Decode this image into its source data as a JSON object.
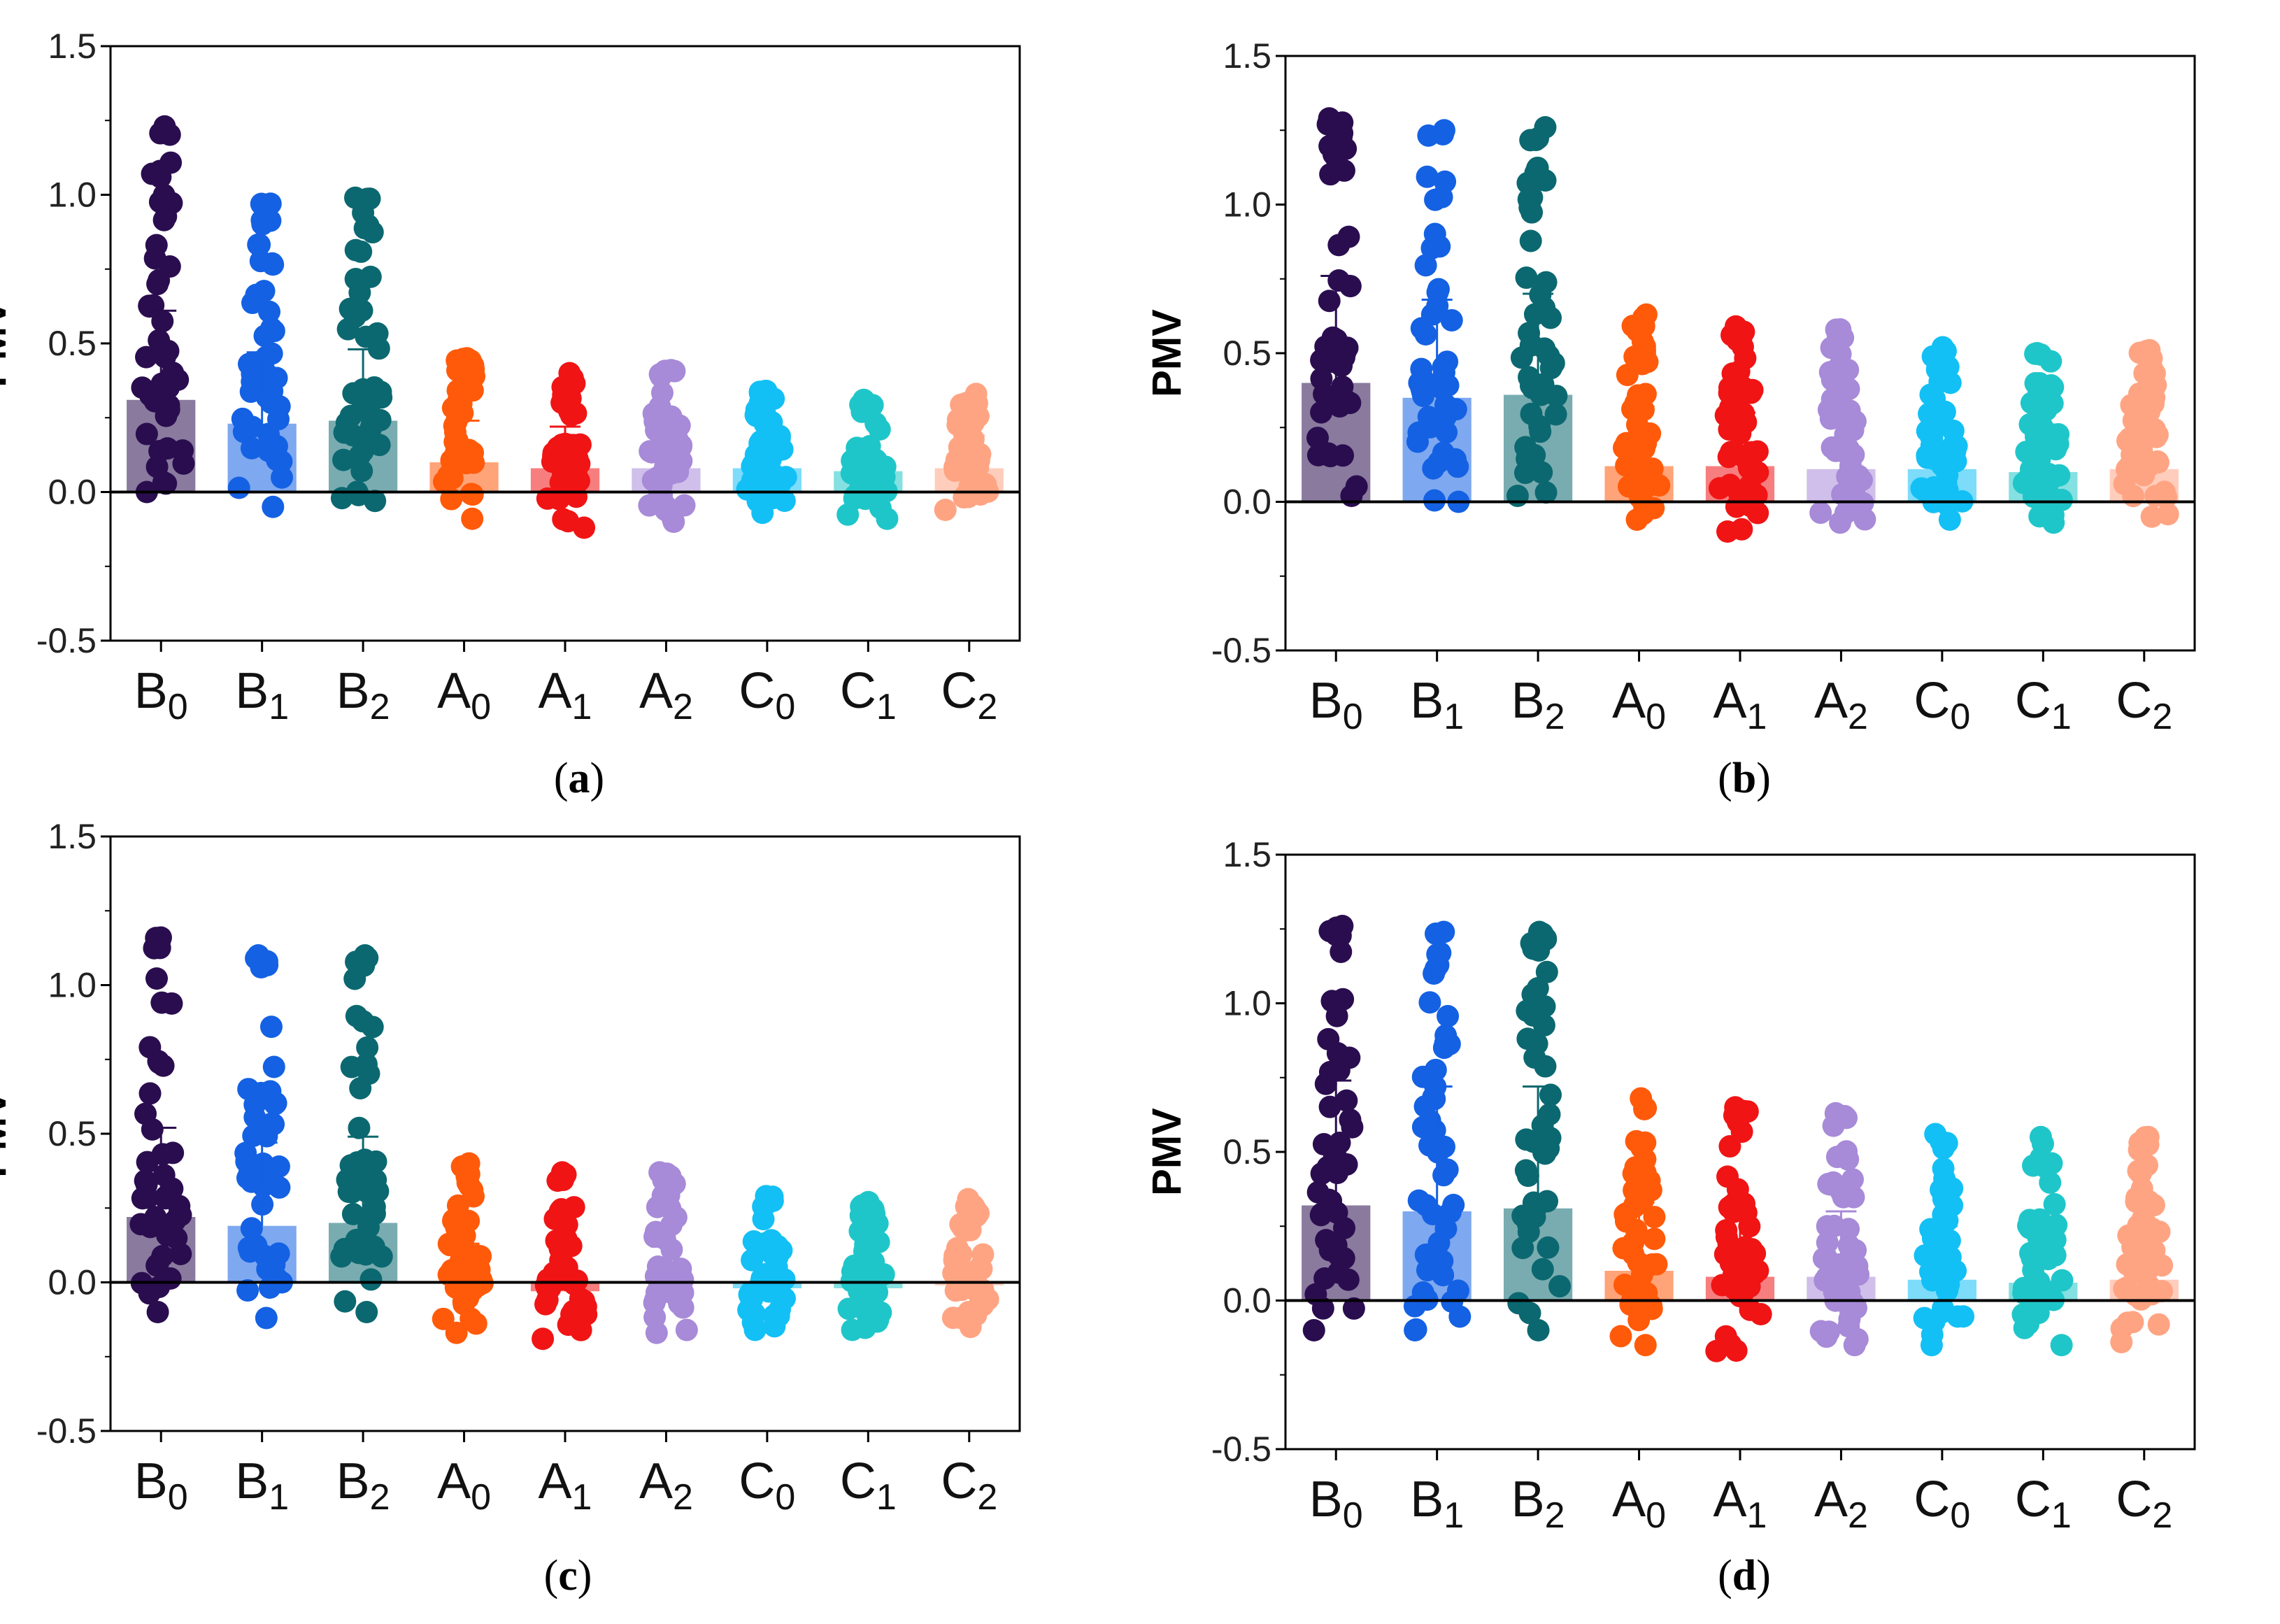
{
  "chart_data": [
    {
      "type": "bar",
      "panel_label": "a",
      "ylabel": "PMV",
      "ylim": [
        -0.5,
        1.5
      ],
      "yticks": [
        "1.5",
        "1.0",
        "0.5",
        "0.0",
        "-0.5"
      ],
      "categories": [
        {
          "base": "B",
          "sub": "0"
        },
        {
          "base": "B",
          "sub": "1"
        },
        {
          "base": "B",
          "sub": "2"
        },
        {
          "base": "A",
          "sub": "0"
        },
        {
          "base": "A",
          "sub": "1"
        },
        {
          "base": "A",
          "sub": "2"
        },
        {
          "base": "C",
          "sub": "0"
        },
        {
          "base": "C",
          "sub": "1"
        },
        {
          "base": "C",
          "sub": "2"
        }
      ],
      "means": [
        0.31,
        0.23,
        0.24,
        0.1,
        0.08,
        0.08,
        0.08,
        0.07,
        0.08
      ],
      "error_upper": [
        0.61,
        0.47,
        0.48,
        0.24,
        0.22,
        0.2,
        0.19,
        0.18,
        0.19
      ],
      "points_max": [
        1.23,
        0.97,
        0.99,
        0.45,
        0.4,
        0.41,
        0.34,
        0.31,
        0.33
      ],
      "points_min": [
        0.0,
        -0.05,
        -0.03,
        -0.09,
        -0.12,
        -0.1,
        -0.07,
        -0.09,
        -0.06
      ]
    },
    {
      "type": "bar",
      "panel_label": "b",
      "ylabel": "PMV",
      "ylim": [
        -0.5,
        1.5
      ],
      "yticks": [
        "1.5",
        "1.0",
        "0.5",
        "0.0",
        "-0.5"
      ],
      "categories": [
        {
          "base": "B",
          "sub": "0"
        },
        {
          "base": "B",
          "sub": "1"
        },
        {
          "base": "B",
          "sub": "2"
        },
        {
          "base": "A",
          "sub": "0"
        },
        {
          "base": "A",
          "sub": "1"
        },
        {
          "base": "A",
          "sub": "2"
        },
        {
          "base": "C",
          "sub": "0"
        },
        {
          "base": "C",
          "sub": "1"
        },
        {
          "base": "C",
          "sub": "2"
        }
      ],
      "means": [
        0.4,
        0.35,
        0.36,
        0.12,
        0.12,
        0.11,
        0.11,
        0.1,
        0.11
      ],
      "error_upper": [
        0.76,
        0.68,
        0.7,
        0.32,
        0.3,
        0.3,
        0.27,
        0.26,
        0.26
      ],
      "points_max": [
        1.29,
        1.25,
        1.26,
        0.63,
        0.59,
        0.58,
        0.52,
        0.5,
        0.51
      ],
      "points_min": [
        0.02,
        0.0,
        0.02,
        -0.06,
        -0.1,
        -0.07,
        -0.06,
        -0.07,
        -0.05
      ]
    },
    {
      "type": "bar",
      "panel_label": "c",
      "ylabel": "PMV",
      "ylim": [
        -0.5,
        1.5
      ],
      "yticks": [
        "1.5",
        "1.0",
        "0.5",
        "0.0",
        "-0.5"
      ],
      "categories": [
        {
          "base": "B",
          "sub": "0"
        },
        {
          "base": "B",
          "sub": "1"
        },
        {
          "base": "B",
          "sub": "2"
        },
        {
          "base": "A",
          "sub": "0"
        },
        {
          "base": "A",
          "sub": "1"
        },
        {
          "base": "A",
          "sub": "2"
        },
        {
          "base": "C",
          "sub": "0"
        },
        {
          "base": "C",
          "sub": "1"
        },
        {
          "base": "C",
          "sub": "2"
        }
      ],
      "means": [
        0.22,
        0.19,
        0.2,
        0.0,
        -0.03,
        0.0,
        -0.02,
        -0.02,
        -0.01
      ],
      "error_upper": [
        0.52,
        0.47,
        0.49,
        0.13,
        0.11,
        0.12,
        0.09,
        0.08,
        0.09
      ],
      "points_max": [
        1.16,
        1.1,
        1.1,
        0.4,
        0.37,
        0.37,
        0.29,
        0.27,
        0.28
      ],
      "points_min": [
        -0.1,
        -0.12,
        -0.1,
        -0.17,
        -0.19,
        -0.17,
        -0.16,
        -0.16,
        -0.15
      ]
    },
    {
      "type": "bar",
      "panel_label": "d",
      "ylabel": "PMV",
      "ylim": [
        -0.5,
        1.5
      ],
      "yticks": [
        "1.5",
        "1.0",
        "0.5",
        "0.0",
        "-0.5"
      ],
      "categories": [
        {
          "base": "B",
          "sub": "0"
        },
        {
          "base": "B",
          "sub": "1"
        },
        {
          "base": "B",
          "sub": "2"
        },
        {
          "base": "A",
          "sub": "0"
        },
        {
          "base": "A",
          "sub": "1"
        },
        {
          "base": "A",
          "sub": "2"
        },
        {
          "base": "C",
          "sub": "0"
        },
        {
          "base": "C",
          "sub": "1"
        },
        {
          "base": "C",
          "sub": "2"
        }
      ],
      "means": [
        0.32,
        0.3,
        0.31,
        0.1,
        0.08,
        0.08,
        0.07,
        0.06,
        0.07
      ],
      "error_upper": [
        0.74,
        0.72,
        0.72,
        0.33,
        0.3,
        0.3,
        0.25,
        0.24,
        0.25
      ],
      "points_max": [
        1.26,
        1.24,
        1.24,
        0.68,
        0.65,
        0.63,
        0.56,
        0.55,
        0.55
      ],
      "points_min": [
        -0.1,
        -0.1,
        -0.1,
        -0.15,
        -0.17,
        -0.15,
        -0.15,
        -0.15,
        -0.14
      ]
    }
  ],
  "colors": [
    "#2a0d4f",
    "#1461e3",
    "#0b6870",
    "#ff5a0a",
    "#f01414",
    "#a78ad8",
    "#12c0f5",
    "#1fc6c9",
    "#ffa483"
  ],
  "zero_line_color": "#000000"
}
